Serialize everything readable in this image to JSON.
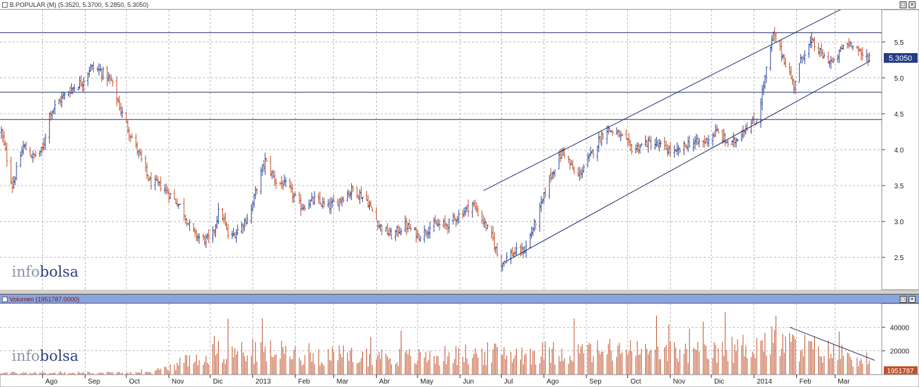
{
  "price_pane": {
    "title": "B.POPULAR (M) (5.3520, 5.3700, 5.2850, 5.3050)",
    "last_price_label": "5.3050",
    "logo_left": "info",
    "logo_right": "bolsa"
  },
  "volume_pane": {
    "title": "Volumen (1951787.0000)",
    "last_volume_label": "1951787",
    "logo_left": "info",
    "logo_right": "bolsa"
  },
  "colors": {
    "up": "#2b4a9a",
    "down": "#c0502a",
    "line": "#27306e",
    "grid": "#9a9a9a",
    "volume": "#c0502a",
    "label_bg": "#253c88"
  },
  "chart_data": [
    {
      "type": "ohlc",
      "title": "B.POPULAR (M) (5.3520, 5.3700, 5.2850, 5.3050)",
      "x_ticks": [
        "Ago",
        "Sep",
        "Oct",
        "Nov",
        "Dic",
        "2013",
        "Feb",
        "Mar",
        "Abr",
        "May",
        "Jun",
        "Jul",
        "Ago",
        "Sep",
        "Oct",
        "Nov",
        "Dic",
        "2014",
        "Feb",
        "Mar"
      ],
      "y_ticks": [
        2.5,
        3.0,
        3.5,
        4.0,
        4.5,
        5.0,
        5.5
      ],
      "ylim": [
        2.05,
        5.95
      ],
      "grid": true,
      "horizontal_levels": [
        4.42,
        4.8,
        5.63
      ],
      "trend_channel": {
        "upper": [
          [
            "2013-06-18",
            3.43
          ],
          [
            "2014-03-10",
            6.0
          ]
        ],
        "lower": [
          [
            "2013-07-05",
            2.45
          ],
          [
            "2014-03-26",
            5.23
          ]
        ]
      },
      "close_path": [
        [
          "2012-07-02",
          4.25
        ],
        [
          "2012-07-10",
          3.5
        ],
        [
          "2012-07-18",
          4.05
        ],
        [
          "2012-07-25",
          3.9
        ],
        [
          "2012-08-01",
          4.0
        ],
        [
          "2012-08-06",
          4.5
        ],
        [
          "2012-08-14",
          4.7
        ],
        [
          "2012-08-22",
          4.85
        ],
        [
          "2012-08-30",
          4.95
        ],
        [
          "2012-09-05",
          5.15
        ],
        [
          "2012-09-12",
          5.1
        ],
        [
          "2012-09-20",
          4.95
        ],
        [
          "2012-09-26",
          4.6
        ],
        [
          "2012-10-02",
          4.3
        ],
        [
          "2012-10-10",
          3.95
        ],
        [
          "2012-10-18",
          3.55
        ],
        [
          "2012-10-26",
          3.5
        ],
        [
          "2012-11-03",
          3.35
        ],
        [
          "2012-11-10",
          3.2
        ],
        [
          "2012-11-18",
          2.85
        ],
        [
          "2012-11-25",
          2.75
        ],
        [
          "2012-12-02",
          2.75
        ],
        [
          "2012-12-08",
          3.2
        ],
        [
          "2012-12-15",
          2.75
        ],
        [
          "2012-12-22",
          2.9
        ],
        [
          "2012-12-30",
          3.1
        ],
        [
          "2013-01-05",
          3.55
        ],
        [
          "2013-01-10",
          3.85
        ],
        [
          "2013-01-18",
          3.55
        ],
        [
          "2013-01-26",
          3.5
        ],
        [
          "2013-02-05",
          3.2
        ],
        [
          "2013-02-15",
          3.3
        ],
        [
          "2013-02-25",
          3.2
        ],
        [
          "2013-03-05",
          3.3
        ],
        [
          "2013-03-15",
          3.45
        ],
        [
          "2013-03-25",
          3.3
        ],
        [
          "2013-04-03",
          2.95
        ],
        [
          "2013-04-12",
          2.8
        ],
        [
          "2013-04-22",
          2.95
        ],
        [
          "2013-05-02",
          2.8
        ],
        [
          "2013-05-12",
          2.95
        ],
        [
          "2013-05-22",
          2.95
        ],
        [
          "2013-06-01",
          3.1
        ],
        [
          "2013-06-10",
          3.25
        ],
        [
          "2013-06-18",
          3.0
        ],
        [
          "2013-06-25",
          2.75
        ],
        [
          "2013-06-30",
          2.4
        ],
        [
          "2013-07-08",
          2.55
        ],
        [
          "2013-07-18",
          2.6
        ],
        [
          "2013-07-28",
          3.1
        ],
        [
          "2013-08-05",
          3.6
        ],
        [
          "2013-08-15",
          4.0
        ],
        [
          "2013-08-25",
          3.6
        ],
        [
          "2013-09-05",
          3.95
        ],
        [
          "2013-09-15",
          4.3
        ],
        [
          "2013-09-25",
          4.2
        ],
        [
          "2013-10-05",
          4.0
        ],
        [
          "2013-10-15",
          4.1
        ],
        [
          "2013-10-25",
          4.05
        ],
        [
          "2013-11-05",
          3.95
        ],
        [
          "2013-11-15",
          4.1
        ],
        [
          "2013-11-25",
          4.1
        ],
        [
          "2013-12-05",
          4.25
        ],
        [
          "2013-12-15",
          4.05
        ],
        [
          "2013-12-25",
          4.3
        ],
        [
          "2014-01-03",
          4.4
        ],
        [
          "2014-01-10",
          5.1
        ],
        [
          "2014-01-15",
          5.6
        ],
        [
          "2014-01-22",
          5.3
        ],
        [
          "2014-01-30",
          4.9
        ],
        [
          "2014-02-05",
          5.3
        ],
        [
          "2014-02-12",
          5.5
        ],
        [
          "2014-02-20",
          5.3
        ],
        [
          "2014-02-28",
          5.2
        ],
        [
          "2014-03-07",
          5.45
        ],
        [
          "2014-03-15",
          5.5
        ],
        [
          "2014-03-20",
          5.3
        ],
        [
          "2014-03-26",
          5.3
        ]
      ]
    },
    {
      "type": "bar",
      "title": "Volumen (1951787.0000)",
      "x_ticks": [
        "Ago",
        "Sep",
        "Oct",
        "Nov",
        "Dic",
        "2013",
        "Feb",
        "Mar",
        "Abr",
        "May",
        "Jun",
        "Jul",
        "Ago",
        "Sep",
        "Oct",
        "Nov",
        "Dic",
        "2014",
        "Feb",
        "Mar"
      ],
      "y_ticks": [
        20000,
        40000
      ],
      "ylim": [
        0,
        60000
      ],
      "grid": true,
      "trend_line": [
        [
          "2014-01-27",
          40000
        ],
        [
          "2014-03-30",
          12000
        ]
      ],
      "volume_envelope": [
        [
          "2012-07-02",
          2000
        ],
        [
          "2012-10-15",
          2000
        ],
        [
          "2012-11-01",
          8000
        ],
        [
          "2012-11-20",
          18000
        ],
        [
          "2012-12-10",
          24000
        ],
        [
          "2013-01-15",
          24000
        ],
        [
          "2013-03-01",
          20000
        ],
        [
          "2013-05-01",
          18000
        ],
        [
          "2013-06-20",
          22000
        ],
        [
          "2013-08-01",
          23000
        ],
        [
          "2013-10-01",
          25000
        ],
        [
          "2013-12-01",
          22000
        ],
        [
          "2014-01-10",
          34000
        ],
        [
          "2014-02-10",
          28000
        ],
        [
          "2014-03-26",
          16000
        ]
      ]
    }
  ]
}
